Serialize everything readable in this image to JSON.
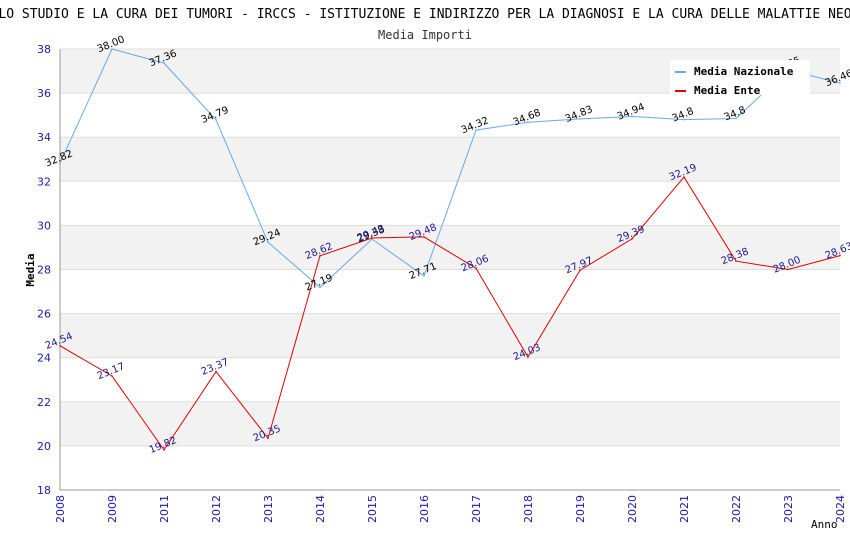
{
  "chart_data": {
    "type": "line",
    "title": "ISTITUTO SCIENTIFICO ROMAGNOLO PER LO STUDIO E LA CURA DEI TUMORI - IRCCS - ISTITUZIONE E INDIRIZZO PER LA DIAGNOSI E LA CURA DELLE MALATTIE NEOFORMATIVE DOTT. ARRIGO CAVICCHI ODV",
    "subtitle": "Media Importi",
    "xlabel": "Anno",
    "ylabel": "Media",
    "ylim": [
      18,
      38
    ],
    "yticks": [
      "18",
      "20",
      "22",
      "24",
      "26",
      "28",
      "30",
      "32",
      "34",
      "36",
      "38"
    ],
    "categories": [
      "2008",
      "2009",
      "2011",
      "2012",
      "2013",
      "2014",
      "2015",
      "2016",
      "2017",
      "2018",
      "2019",
      "2020",
      "2021",
      "2022",
      "2023",
      "2024"
    ],
    "series": [
      {
        "name": "Media Nazionale",
        "color": "#6aa9e6",
        "values": [
          32.82,
          38.0,
          37.36,
          34.79,
          29.24,
          27.19,
          29.38,
          27.71,
          34.32,
          34.68,
          34.83,
          34.94,
          34.8,
          34.85,
          37.05,
          36.46
        ],
        "labels": [
          "32.82",
          "38.00",
          "37.36",
          "34.79",
          "29.24",
          "27.19",
          "29.38",
          "27.71",
          "34.32",
          "34.68",
          "34.83",
          "34.94",
          "34.8",
          "34.8",
          "37.05",
          "36.46"
        ]
      },
      {
        "name": "Media Ente",
        "color": "#e00000",
        "values": [
          24.54,
          23.17,
          19.82,
          23.37,
          20.35,
          28.62,
          29.43,
          29.48,
          28.06,
          24.03,
          27.97,
          29.39,
          32.19,
          28.38,
          28.0,
          28.63
        ],
        "labels": [
          "24.54",
          "23.17",
          "19.82",
          "23.37",
          "20.35",
          "28.62",
          "29.43",
          "29.48",
          "28.06",
          "24.03",
          "27.97",
          "29.39",
          "32.19",
          "28.38",
          "28.00",
          "28.63"
        ]
      }
    ],
    "legend": "top-right",
    "grid": true
  }
}
